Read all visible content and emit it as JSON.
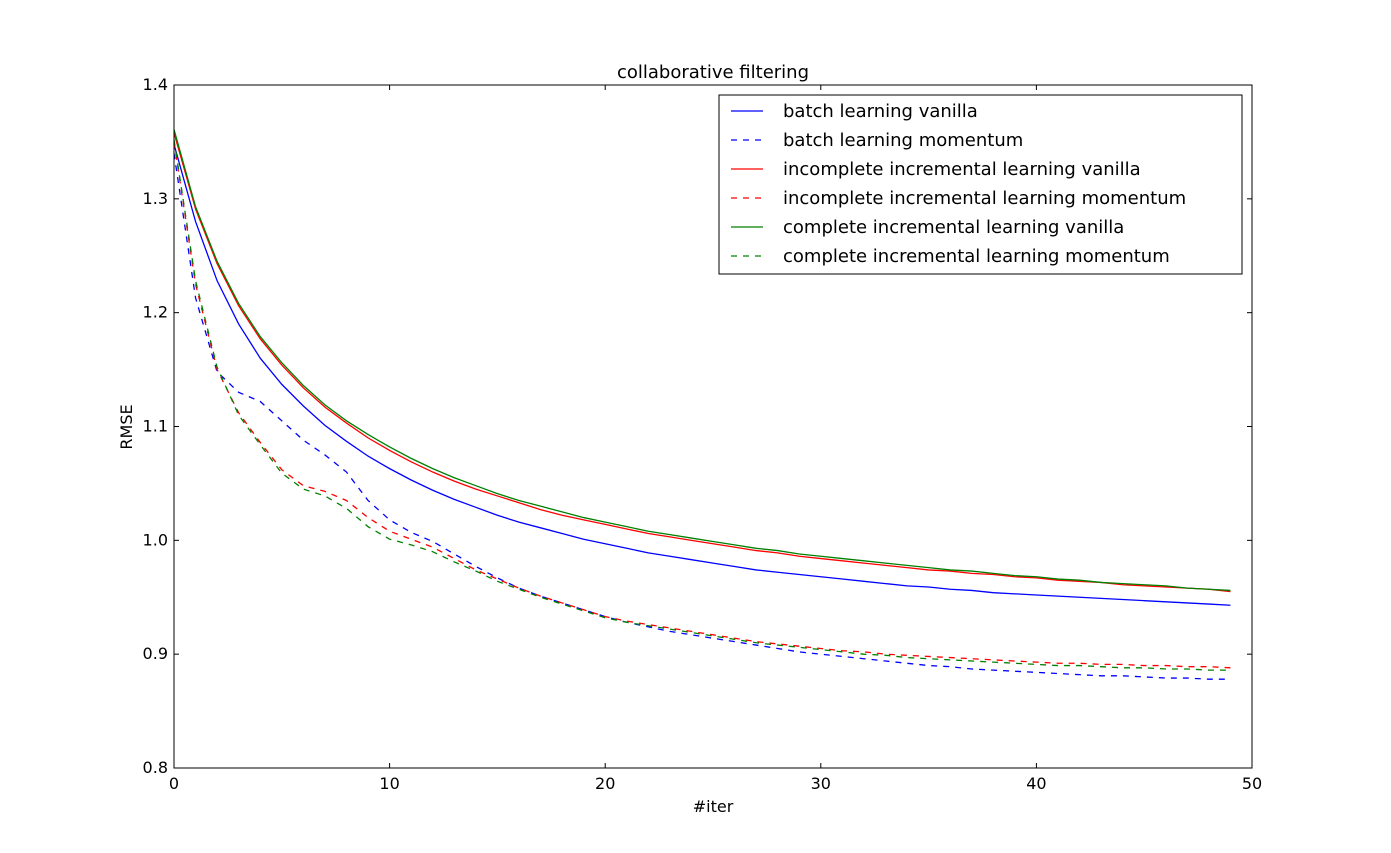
{
  "chart_data": {
    "type": "line",
    "title": "collaborative filtering",
    "xlabel": "#iter",
    "ylabel": "RMSE",
    "xlim": [
      0,
      50
    ],
    "ylim": [
      0.8,
      1.4
    ],
    "xticks": [
      0,
      10,
      20,
      30,
      40,
      50
    ],
    "xtick_labels": [
      "0",
      "10",
      "20",
      "30",
      "40",
      "50"
    ],
    "yticks": [
      0.8,
      0.9,
      1.0,
      1.1,
      1.2,
      1.3,
      1.4
    ],
    "ytick_labels": [
      "0.8",
      "0.9",
      "1.0",
      "1.1",
      "1.2",
      "1.3",
      "1.4"
    ],
    "grid": false,
    "legend_position": "top-right",
    "x": [
      0,
      1,
      2,
      3,
      4,
      5,
      6,
      7,
      8,
      9,
      10,
      11,
      12,
      13,
      14,
      15,
      16,
      17,
      18,
      19,
      20,
      21,
      22,
      23,
      24,
      25,
      26,
      27,
      28,
      29,
      30,
      31,
      32,
      33,
      34,
      35,
      36,
      37,
      38,
      39,
      40,
      41,
      42,
      43,
      44,
      45,
      46,
      47,
      48,
      49
    ],
    "series": [
      {
        "name": "batch learning vanilla",
        "color": "#0000ff",
        "dash": "solid",
        "values": [
          1.348,
          1.28,
          1.228,
          1.19,
          1.16,
          1.137,
          1.118,
          1.101,
          1.087,
          1.074,
          1.063,
          1.053,
          1.044,
          1.036,
          1.029,
          1.022,
          1.016,
          1.011,
          1.006,
          1.001,
          0.997,
          0.993,
          0.989,
          0.986,
          0.983,
          0.98,
          0.977,
          0.974,
          0.972,
          0.97,
          0.968,
          0.966,
          0.964,
          0.962,
          0.96,
          0.959,
          0.957,
          0.956,
          0.954,
          0.953,
          0.952,
          0.951,
          0.95,
          0.949,
          0.948,
          0.947,
          0.946,
          0.945,
          0.944,
          0.943
        ]
      },
      {
        "name": "batch learning momentum",
        "color": "#0000ff",
        "dash": "dashed",
        "values": [
          1.34,
          1.213,
          1.148,
          1.13,
          1.122,
          1.105,
          1.088,
          1.075,
          1.06,
          1.035,
          1.018,
          1.007,
          0.999,
          0.988,
          0.977,
          0.967,
          0.958,
          0.951,
          0.945,
          0.939,
          0.933,
          0.928,
          0.924,
          0.92,
          0.917,
          0.914,
          0.911,
          0.908,
          0.905,
          0.902,
          0.9,
          0.898,
          0.896,
          0.894,
          0.892,
          0.89,
          0.889,
          0.887,
          0.886,
          0.885,
          0.884,
          0.883,
          0.882,
          0.881,
          0.881,
          0.88,
          0.879,
          0.879,
          0.878,
          0.878
        ]
      },
      {
        "name": "incomplete incremental learning vanilla",
        "color": "#ff0000",
        "dash": "solid",
        "values": [
          1.358,
          1.291,
          1.243,
          1.206,
          1.177,
          1.154,
          1.134,
          1.117,
          1.103,
          1.09,
          1.079,
          1.069,
          1.06,
          1.052,
          1.045,
          1.039,
          1.033,
          1.027,
          1.022,
          1.018,
          1.014,
          1.01,
          1.006,
          1.003,
          1.0,
          0.997,
          0.994,
          0.991,
          0.989,
          0.986,
          0.984,
          0.982,
          0.98,
          0.978,
          0.976,
          0.974,
          0.973,
          0.971,
          0.97,
          0.968,
          0.967,
          0.965,
          0.964,
          0.963,
          0.961,
          0.96,
          0.959,
          0.958,
          0.957,
          0.955
        ]
      },
      {
        "name": "incomplete incremental learning momentum",
        "color": "#ff0000",
        "dash": "dashed",
        "values": [
          1.35,
          1.225,
          1.15,
          1.112,
          1.086,
          1.062,
          1.048,
          1.043,
          1.035,
          1.02,
          1.008,
          1.001,
          0.994,
          0.984,
          0.974,
          0.966,
          0.958,
          0.951,
          0.945,
          0.939,
          0.933,
          0.929,
          0.926,
          0.923,
          0.92,
          0.917,
          0.914,
          0.911,
          0.909,
          0.907,
          0.905,
          0.903,
          0.902,
          0.9,
          0.899,
          0.898,
          0.897,
          0.896,
          0.895,
          0.894,
          0.893,
          0.892,
          0.892,
          0.891,
          0.891,
          0.89,
          0.89,
          0.889,
          0.889,
          0.888
        ]
      },
      {
        "name": "complete incremental learning vanilla",
        "color": "#008000",
        "dash": "solid",
        "values": [
          1.361,
          1.293,
          1.245,
          1.208,
          1.179,
          1.156,
          1.136,
          1.119,
          1.105,
          1.093,
          1.082,
          1.072,
          1.063,
          1.055,
          1.048,
          1.041,
          1.035,
          1.03,
          1.025,
          1.02,
          1.016,
          1.012,
          1.008,
          1.005,
          1.002,
          0.999,
          0.996,
          0.993,
          0.991,
          0.988,
          0.986,
          0.984,
          0.982,
          0.98,
          0.978,
          0.976,
          0.974,
          0.973,
          0.971,
          0.969,
          0.968,
          0.966,
          0.965,
          0.963,
          0.962,
          0.961,
          0.96,
          0.958,
          0.957,
          0.956
        ]
      },
      {
        "name": "complete incremental learning momentum",
        "color": "#008000",
        "dash": "dashed",
        "values": [
          1.352,
          1.228,
          1.152,
          1.11,
          1.084,
          1.059,
          1.045,
          1.039,
          1.028,
          1.012,
          1.001,
          0.996,
          0.99,
          0.981,
          0.973,
          0.964,
          0.957,
          0.95,
          0.944,
          0.938,
          0.932,
          0.928,
          0.925,
          0.922,
          0.919,
          0.916,
          0.913,
          0.91,
          0.908,
          0.906,
          0.904,
          0.902,
          0.9,
          0.899,
          0.897,
          0.896,
          0.895,
          0.894,
          0.893,
          0.892,
          0.891,
          0.89,
          0.89,
          0.889,
          0.888,
          0.888,
          0.887,
          0.887,
          0.886,
          0.886
        ]
      }
    ]
  }
}
